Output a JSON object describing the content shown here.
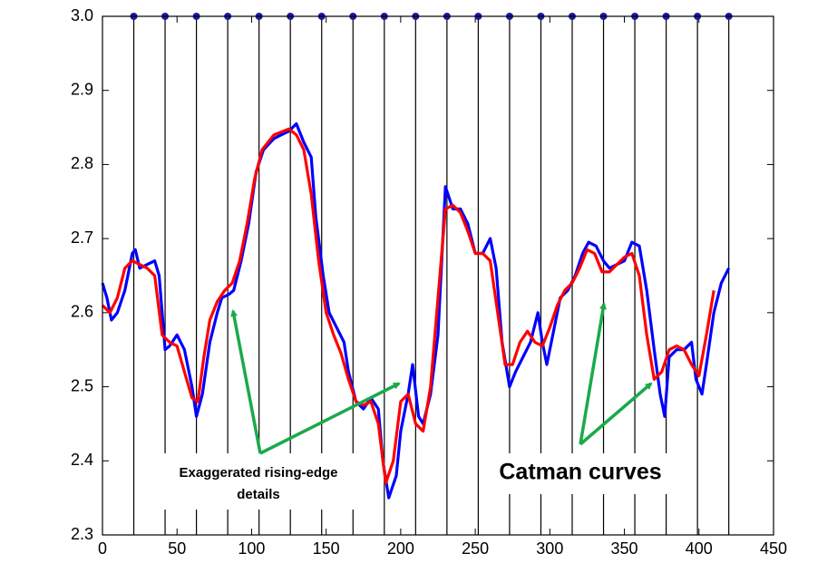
{
  "chart_data": {
    "type": "line",
    "xlim": [
      0,
      450
    ],
    "xticks": [
      0,
      50,
      100,
      150,
      200,
      250,
      300,
      350,
      400,
      450
    ],
    "ylim": [
      2.3,
      3.0
    ],
    "yticks": [
      2.3,
      2.4,
      2.5,
      2.6,
      2.7,
      2.8,
      2.9,
      {
        "value": 3.0,
        "label": "3.0"
      }
    ],
    "markers": {
      "color": "#1a1aa0",
      "x": [
        21,
        42,
        63,
        84,
        105,
        126,
        147,
        168,
        189,
        210,
        231,
        252,
        273,
        294,
        315,
        336,
        357,
        378,
        399,
        420
      ],
      "values": [
        3.0,
        3.0,
        3.0,
        3.0,
        3.0,
        3.0,
        3.0,
        3.0,
        3.0,
        3.0,
        3.0,
        3.0,
        3.0,
        3.0,
        3.0,
        3.0,
        3.0,
        3.0,
        3.0,
        3.0
      ]
    },
    "series": [
      {
        "color": "#0000ff",
        "x": [
          0,
          3,
          6,
          10,
          15,
          20,
          22,
          25,
          30,
          35,
          38,
          40,
          42,
          45,
          50,
          55,
          60,
          63,
          67,
          72,
          77,
          80,
          85,
          88,
          93,
          98,
          103,
          108,
          115,
          120,
          125,
          130,
          135,
          140,
          143,
          148,
          152,
          157,
          162,
          165,
          170,
          175,
          180,
          185,
          188,
          192,
          197,
          200,
          205,
          208,
          212,
          215,
          220,
          225,
          230,
          235,
          240,
          245,
          250,
          255,
          260,
          264,
          268,
          273,
          277,
          282,
          287,
          292,
          295,
          298,
          302,
          307,
          312,
          317,
          322,
          326,
          331,
          336,
          340,
          345,
          350,
          355,
          360,
          365,
          370,
          374,
          377,
          380,
          385,
          390,
          395,
          398,
          402,
          405,
          410,
          415,
          420
        ],
        "values": [
          2.64,
          2.62,
          2.59,
          2.6,
          2.63,
          2.68,
          2.685,
          2.66,
          2.665,
          2.67,
          2.65,
          2.6,
          2.55,
          2.555,
          2.57,
          2.55,
          2.5,
          2.46,
          2.49,
          2.56,
          2.6,
          2.62,
          2.625,
          2.63,
          2.67,
          2.72,
          2.79,
          2.82,
          2.835,
          2.84,
          2.845,
          2.855,
          2.83,
          2.81,
          2.73,
          2.65,
          2.6,
          2.58,
          2.56,
          2.52,
          2.48,
          2.47,
          2.485,
          2.47,
          2.4,
          2.35,
          2.38,
          2.44,
          2.49,
          2.53,
          2.46,
          2.45,
          2.49,
          2.57,
          2.77,
          2.74,
          2.74,
          2.72,
          2.68,
          2.68,
          2.7,
          2.66,
          2.56,
          2.5,
          2.52,
          2.54,
          2.56,
          2.6,
          2.56,
          2.53,
          2.57,
          2.62,
          2.63,
          2.65,
          2.68,
          2.695,
          2.69,
          2.67,
          2.66,
          2.665,
          2.67,
          2.695,
          2.69,
          2.63,
          2.55,
          2.49,
          2.46,
          2.54,
          2.55,
          2.55,
          2.56,
          2.51,
          2.49,
          2.53,
          2.6,
          2.64,
          2.66
        ]
      },
      {
        "color": "#ff0000",
        "x": [
          0,
          5,
          10,
          15,
          20,
          25,
          30,
          35,
          40,
          45,
          50,
          55,
          60,
          64,
          68,
          72,
          77,
          82,
          87,
          92,
          97,
          102,
          107,
          115,
          125,
          130,
          135,
          140,
          145,
          150,
          155,
          160,
          165,
          170,
          175,
          180,
          185,
          190,
          195,
          200,
          205,
          210,
          215,
          220,
          225,
          230,
          235,
          240,
          245,
          250,
          255,
          260,
          265,
          270,
          275,
          280,
          285,
          290,
          295,
          300,
          305,
          310,
          315,
          320,
          325,
          330,
          335,
          340,
          345,
          350,
          355,
          360,
          365,
          370,
          375,
          380,
          385,
          390,
          395,
          400,
          405,
          410
        ],
        "values": [
          2.61,
          2.6,
          2.62,
          2.66,
          2.67,
          2.665,
          2.66,
          2.65,
          2.57,
          2.56,
          2.555,
          2.52,
          2.485,
          2.48,
          2.54,
          2.59,
          2.615,
          2.63,
          2.64,
          2.67,
          2.72,
          2.78,
          2.82,
          2.84,
          2.848,
          2.84,
          2.82,
          2.76,
          2.67,
          2.6,
          2.57,
          2.545,
          2.51,
          2.48,
          2.475,
          2.48,
          2.45,
          2.37,
          2.4,
          2.48,
          2.49,
          2.45,
          2.44,
          2.5,
          2.62,
          2.74,
          2.745,
          2.735,
          2.71,
          2.68,
          2.68,
          2.67,
          2.6,
          2.53,
          2.53,
          2.56,
          2.575,
          2.56,
          2.555,
          2.58,
          2.61,
          2.63,
          2.64,
          2.66,
          2.685,
          2.68,
          2.655,
          2.655,
          2.665,
          2.675,
          2.68,
          2.65,
          2.57,
          2.51,
          2.52,
          2.55,
          2.555,
          2.55,
          2.53,
          2.515,
          2.57,
          2.63
        ]
      }
    ],
    "annotations": [
      [
        "Exaggerated rising-edge",
        "details"
      ],
      "Catman curves"
    ]
  }
}
